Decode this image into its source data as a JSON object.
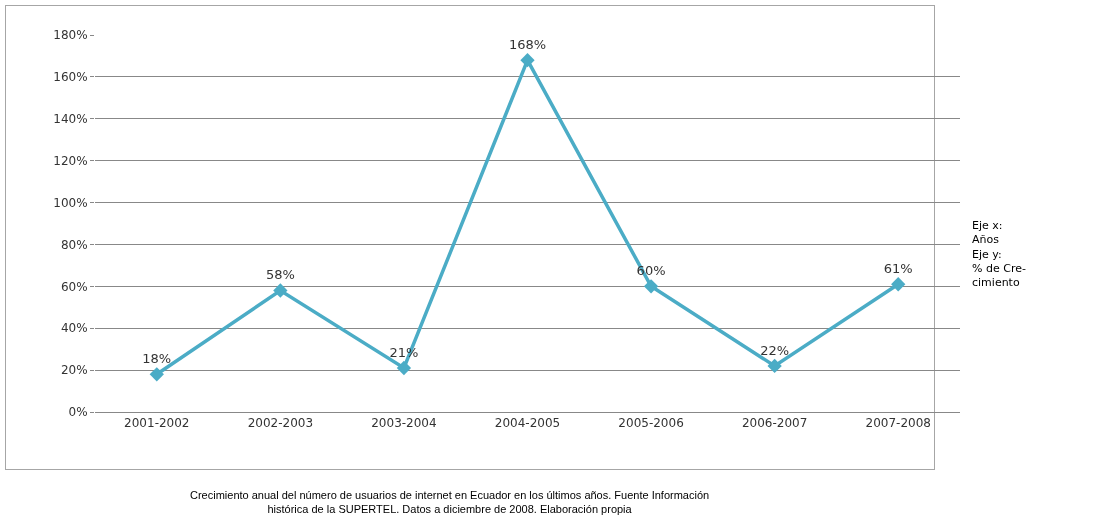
{
  "chart_data": {
    "type": "line",
    "categories": [
      "2001-2002",
      "2002-2003",
      "2003-2004",
      "2004-2005",
      "2005-2006",
      "2006-2007",
      "2007-2008"
    ],
    "values": [
      18,
      58,
      21,
      168,
      60,
      22,
      61
    ],
    "value_labels": [
      "18%",
      "58%",
      "21%",
      "168%",
      "60%",
      "22%",
      "61%"
    ],
    "color": "#4bacc6",
    "marker": "diamond",
    "line_style": "solid",
    "grid": "y",
    "ylim": [
      0,
      180
    ],
    "yticks": [
      {
        "value": 0,
        "label": "0%"
      },
      {
        "value": 20,
        "label": "20%"
      },
      {
        "value": 40,
        "label": "40%"
      },
      {
        "value": 60,
        "label": "60%"
      },
      {
        "value": 80,
        "label": "80%"
      },
      {
        "value": 100,
        "label": "100%"
      },
      {
        "value": 120,
        "label": "120%"
      },
      {
        "value": 140,
        "label": "140%"
      },
      {
        "value": 160,
        "label": "160%"
      },
      {
        "value": 180,
        "label": "180%"
      }
    ],
    "annotations": [
      "Eje x:\nAños\nEje y:\n% de Cre-\ncimiento",
      "Crecimiento anual del número de usuarios de internet en Ecuador en los últimos años. Fuente Información\nhistórica de la SUPERTEL. Datos a diciembre de 2008. Elaboración propia"
    ]
  }
}
